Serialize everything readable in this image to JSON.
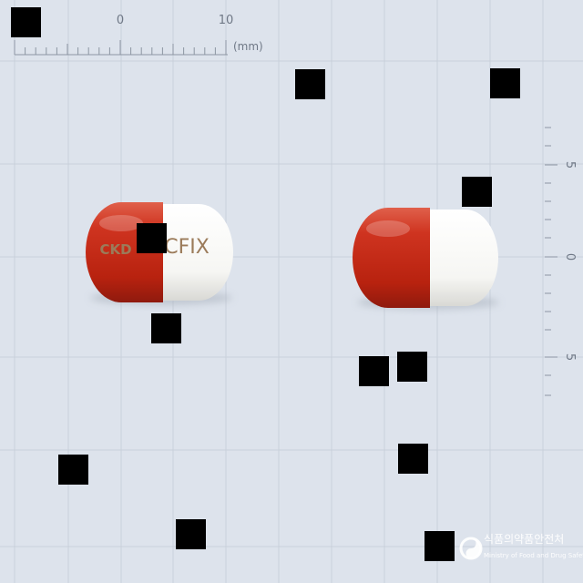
{
  "ruler": {
    "top_labels": [
      "0",
      "10"
    ],
    "unit_label": "(mm)",
    "side_labels": [
      "5",
      "0",
      "5"
    ]
  },
  "pill_left": {
    "imprint_red": "CKD",
    "imprint_white": "CFIX"
  },
  "watermark": {
    "agency_korean": "식품의약품안전처",
    "agency_english": "Ministry of Food and Drug Safety"
  },
  "colors": {
    "background": "#dde3ec",
    "grid": "#c9d2de",
    "capsule_red": "#c0291b",
    "capsule_white": "#fbfbfb",
    "imprint": "#9b7b5a"
  },
  "icons": {
    "watermark_logo": "mfds-taegeuk-logo"
  }
}
